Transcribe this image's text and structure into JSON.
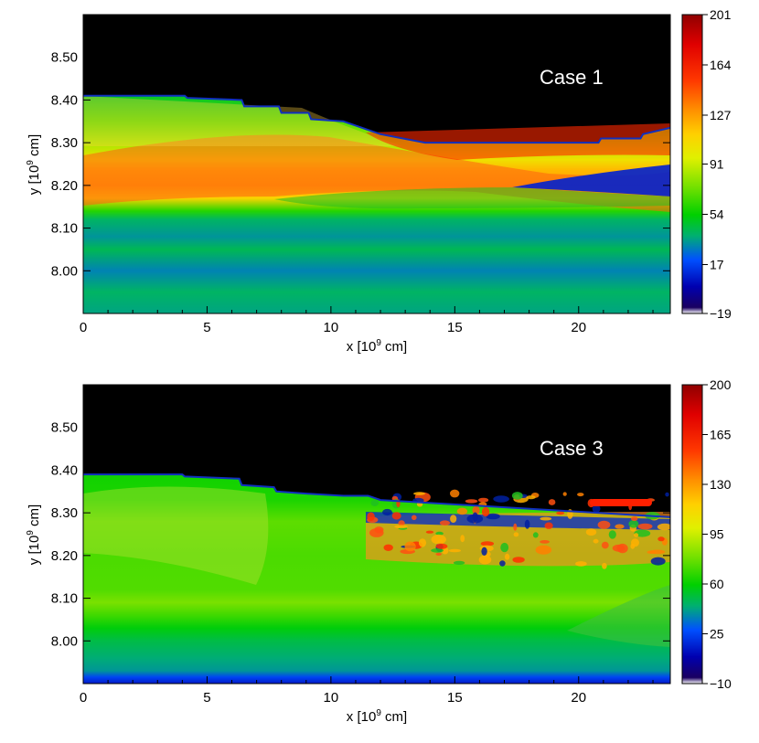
{
  "chart_data": [
    {
      "type": "heatmap",
      "panel_label": "Case 1",
      "xlabel_main": "x [10",
      "xlabel_exp": "9",
      "xlabel_unit": " cm]",
      "ylabel_main": "y [10",
      "ylabel_exp": "9",
      "ylabel_unit": " cm]",
      "xlim": [
        0,
        23.7
      ],
      "ylim": [
        7.9,
        8.6
      ],
      "x_ticks": [
        0,
        5,
        10,
        15,
        20
      ],
      "x_tick_labels": [
        "0",
        "5",
        "10",
        "15",
        "20"
      ],
      "y_ticks": [
        8.0,
        8.1,
        8.2,
        8.3,
        8.4,
        8.5
      ],
      "y_tick_labels": [
        "8.00",
        "8.10",
        "8.20",
        "8.30",
        "8.40",
        "8.50"
      ],
      "colorbar": {
        "min": -19,
        "max": 201,
        "ticks": [
          -19,
          17,
          54,
          91,
          127,
          164,
          201
        ],
        "tick_labels": [
          "−19",
          "17",
          "54",
          "91",
          "127",
          "164",
          "201"
        ]
      },
      "surface": [
        [
          0,
          8.41
        ],
        [
          4.1,
          8.41
        ],
        [
          4.2,
          8.405
        ],
        [
          6.4,
          8.4
        ],
        [
          6.5,
          8.385
        ],
        [
          7.9,
          8.385
        ],
        [
          8.0,
          8.37
        ],
        [
          9.1,
          8.37
        ],
        [
          9.2,
          8.355
        ],
        [
          10.5,
          8.35
        ],
        [
          11.0,
          8.34
        ],
        [
          12.0,
          8.32
        ],
        [
          13.8,
          8.3
        ],
        [
          20.8,
          8.3
        ],
        [
          20.9,
          8.31
        ],
        [
          22.5,
          8.31
        ],
        [
          22.6,
          8.32
        ],
        [
          23.7,
          8.335
        ]
      ],
      "bands": [
        {
          "y": 8.415,
          "value": 48
        },
        {
          "y": 8.35,
          "value": 68
        },
        {
          "y": 8.3,
          "value": 84
        },
        {
          "y": 8.26,
          "value": 104
        },
        {
          "y": 8.235,
          "value": 120
        },
        {
          "y": 8.2,
          "value": 125
        },
        {
          "y": 8.17,
          "value": 110
        },
        {
          "y": 8.14,
          "value": 60
        },
        {
          "y": 8.12,
          "value": 40
        },
        {
          "y": 8.08,
          "value": 33
        },
        {
          "y": 8.05,
          "value": 42
        },
        {
          "y": 8.0,
          "value": 30
        },
        {
          "y": 7.95,
          "value": 40
        },
        {
          "y": 7.9,
          "value": 36
        }
      ]
    },
    {
      "type": "heatmap",
      "panel_label": "Case 3",
      "xlabel_main": "x [10",
      "xlabel_exp": "9",
      "xlabel_unit": " cm]",
      "ylabel_main": "y [10",
      "ylabel_exp": "9",
      "ylabel_unit": " cm]",
      "xlim": [
        0,
        23.7
      ],
      "ylim": [
        7.9,
        8.6
      ],
      "x_ticks": [
        0,
        5,
        10,
        15,
        20
      ],
      "x_tick_labels": [
        "0",
        "5",
        "10",
        "15",
        "20"
      ],
      "y_ticks": [
        8.0,
        8.1,
        8.2,
        8.3,
        8.4,
        8.5
      ],
      "y_tick_labels": [
        "8.00",
        "8.10",
        "8.20",
        "8.30",
        "8.40",
        "8.50"
      ],
      "colorbar": {
        "min": -10,
        "max": 200,
        "ticks": [
          -10,
          25,
          60,
          95,
          130,
          165,
          200
        ],
        "tick_labels": [
          "−10",
          "25",
          "60",
          "95",
          "130",
          "165",
          "200"
        ]
      },
      "surface": [
        [
          0,
          8.39
        ],
        [
          4.0,
          8.39
        ],
        [
          4.1,
          8.385
        ],
        [
          6.3,
          8.38
        ],
        [
          6.4,
          8.365
        ],
        [
          7.7,
          8.36
        ],
        [
          7.8,
          8.35
        ],
        [
          9.0,
          8.345
        ],
        [
          10.5,
          8.34
        ],
        [
          11.5,
          8.34
        ],
        [
          12.0,
          8.33
        ],
        [
          23.7,
          8.29
        ]
      ],
      "bands": [
        {
          "y": 8.39,
          "value": 62
        },
        {
          "y": 8.33,
          "value": 64
        },
        {
          "y": 8.28,
          "value": 75
        },
        {
          "y": 8.2,
          "value": 72
        },
        {
          "y": 8.12,
          "value": 73
        },
        {
          "y": 8.09,
          "value": 80
        },
        {
          "y": 8.06,
          "value": 70
        },
        {
          "y": 8.03,
          "value": 58
        },
        {
          "y": 8.0,
          "value": 50
        },
        {
          "y": 7.96,
          "value": 44
        },
        {
          "y": 7.93,
          "value": 40
        },
        {
          "y": 7.915,
          "value": 25
        },
        {
          "y": 7.9,
          "value": 15
        }
      ]
    }
  ]
}
